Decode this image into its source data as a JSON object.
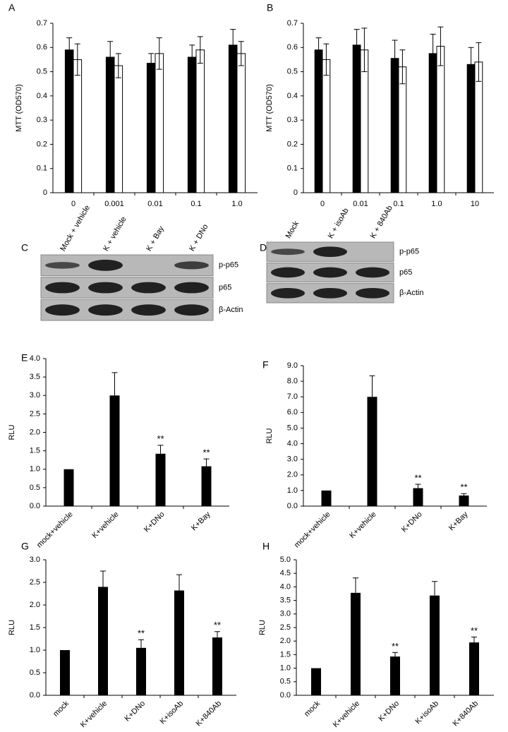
{
  "chart_data": [
    {
      "type": "bar",
      "panel": "A",
      "y_label": "MTT (OD570)",
      "categories": [
        "0",
        "0.001",
        "0.01",
        "0.1",
        "1.0"
      ],
      "series": [
        {
          "color": "#000000",
          "values": [
            0.59,
            0.56,
            0.535,
            0.56,
            0.61
          ],
          "errors": [
            0.05,
            0.065,
            0.04,
            0.05,
            0.065
          ]
        },
        {
          "color": "#ffffff",
          "values": [
            0.55,
            0.525,
            0.575,
            0.59,
            0.575
          ],
          "errors": [
            0.065,
            0.05,
            0.065,
            0.055,
            0.05
          ]
        }
      ],
      "ylim": [
        0,
        0.7
      ],
      "yticks": [
        0,
        0.1,
        0.2,
        0.3,
        0.4,
        0.5,
        0.6,
        0.7
      ]
    },
    {
      "type": "bar",
      "panel": "B",
      "y_label": "MTT (OD570)",
      "categories": [
        "0",
        "0.01",
        "0.1",
        "1.0",
        "10"
      ],
      "series": [
        {
          "color": "#000000",
          "values": [
            0.59,
            0.61,
            0.555,
            0.575,
            0.53
          ],
          "errors": [
            0.05,
            0.065,
            0.075,
            0.08,
            0.07
          ]
        },
        {
          "color": "#ffffff",
          "values": [
            0.55,
            0.59,
            0.52,
            0.605,
            0.54
          ],
          "errors": [
            0.065,
            0.09,
            0.07,
            0.08,
            0.08
          ]
        }
      ],
      "ylim": [
        0,
        0.7
      ],
      "yticks": [
        0,
        0.1,
        0.2,
        0.3,
        0.4,
        0.5,
        0.6,
        0.7
      ]
    },
    {
      "type": "blot",
      "panel": "C",
      "lanes": [
        "Mock + vehicle",
        "K + vehicle",
        "K + Bay",
        "K + DNo"
      ],
      "bands": [
        "p-p65",
        "p65",
        "β-Actin"
      ]
    },
    {
      "type": "blot",
      "panel": "D",
      "lanes": [
        "Mock",
        "K + isoAb",
        "K + 840Ab"
      ],
      "bands": [
        "p-p65",
        "p65",
        "β-Actin"
      ]
    },
    {
      "type": "bar",
      "panel": "E",
      "y_label": "RLU",
      "color": "#000000",
      "categories": [
        "mock+vehicle",
        "K+vehicle",
        "K+DNo",
        "K+Bay"
      ],
      "values": [
        1.0,
        3.0,
        1.42,
        1.08
      ],
      "errors": [
        0,
        0.62,
        0.23,
        0.2
      ],
      "significance": [
        null,
        null,
        "**",
        "**"
      ],
      "ylim": [
        0,
        4
      ],
      "yticks": [
        {
          "value": 0,
          "label": "0.0"
        },
        {
          "value": 0.5,
          "label": "0.5"
        },
        {
          "value": 1,
          "label": "1.0"
        },
        {
          "value": 1.5,
          "label": "1.5"
        },
        {
          "value": 2,
          "label": "2.0"
        },
        {
          "value": 2.5,
          "label": "2.5"
        },
        {
          "value": 3,
          "label": "3.0"
        },
        {
          "value": 3.5,
          "label": "3.5"
        },
        {
          "value": 4,
          "label": "4.0"
        }
      ]
    },
    {
      "type": "bar",
      "panel": "F",
      "y_label": "RLU",
      "color": "#000000",
      "categories": [
        "mock+vehicle",
        "K+vehicle",
        "K+DNo",
        "K+Bay"
      ],
      "values": [
        1.0,
        7.0,
        1.15,
        0.68
      ],
      "errors": [
        0,
        1.35,
        0.25,
        0.12
      ],
      "significance": [
        null,
        null,
        "**",
        "**"
      ],
      "ylim": [
        0,
        9
      ],
      "yticks": [
        {
          "value": 0,
          "label": "0.0"
        },
        {
          "value": 1,
          "label": "1.0"
        },
        {
          "value": 2,
          "label": "2.0"
        },
        {
          "value": 3,
          "label": "3.0"
        },
        {
          "value": 4,
          "label": "4.0"
        },
        {
          "value": 5,
          "label": "5.0"
        },
        {
          "value": 6,
          "label": "6.0"
        },
        {
          "value": 7,
          "label": "7.0"
        },
        {
          "value": 8,
          "label": "8.0"
        },
        {
          "value": 9,
          "label": "9.0"
        }
      ]
    },
    {
      "type": "bar",
      "panel": "G",
      "y_label": "RLU",
      "color": "#000000",
      "categories": [
        "mock",
        "K+vehicle",
        "K+DNo",
        "K+isoAb",
        "K+840Ab"
      ],
      "values": [
        1.0,
        2.4,
        1.05,
        2.32,
        1.28
      ],
      "errors": [
        0,
        0.35,
        0.18,
        0.35,
        0.13
      ],
      "significance": [
        null,
        null,
        "**",
        null,
        "**"
      ],
      "ylim": [
        0,
        3
      ],
      "yticks": [
        {
          "value": 0,
          "label": "0.0"
        },
        {
          "value": 0.5,
          "label": "0.5"
        },
        {
          "value": 1,
          "label": "1.0"
        },
        {
          "value": 1.5,
          "label": "1.5"
        },
        {
          "value": 2,
          "label": "2.0"
        },
        {
          "value": 2.5,
          "label": "2.5"
        },
        {
          "value": 3,
          "label": "3.0"
        }
      ]
    },
    {
      "type": "bar",
      "panel": "H",
      "y_label": "RLU",
      "color": "#000000",
      "categories": [
        "mock",
        "K+vehicle",
        "K+DNo",
        "K+isoAb",
        "K+840Ab"
      ],
      "values": [
        1.0,
        3.78,
        1.43,
        3.68,
        1.95
      ],
      "errors": [
        0,
        0.55,
        0.15,
        0.52,
        0.2
      ],
      "significance": [
        null,
        null,
        "**",
        null,
        "**"
      ],
      "ylim": [
        0,
        5
      ],
      "yticks": [
        {
          "value": 0,
          "label": "0.0"
        },
        {
          "value": 0.5,
          "label": "0.5"
        },
        {
          "value": 1,
          "label": "1.0"
        },
        {
          "value": 1.5,
          "label": "1.5"
        },
        {
          "value": 2,
          "label": "2.0"
        },
        {
          "value": 2.5,
          "label": "2.5"
        },
        {
          "value": 3,
          "label": "3.0"
        },
        {
          "value": 3.5,
          "label": "3.5"
        },
        {
          "value": 4,
          "label": "4.0"
        },
        {
          "value": 4.5,
          "label": "4.5"
        },
        {
          "value": 5,
          "label": "5.0"
        }
      ]
    }
  ]
}
